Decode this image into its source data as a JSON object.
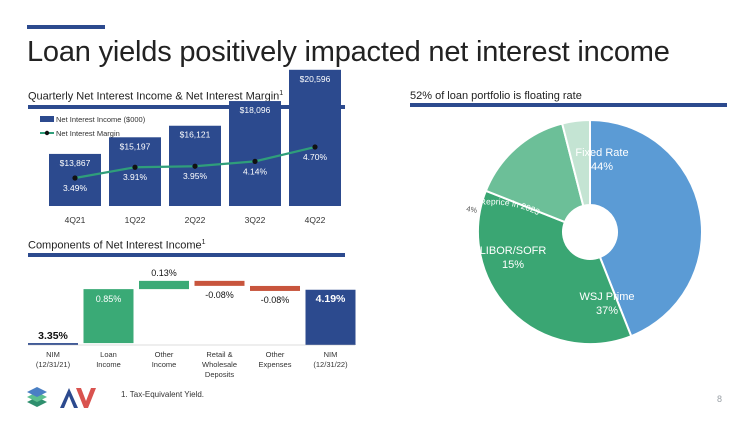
{
  "slide": {
    "title": "Loan yields positively impacted net interest income",
    "page_number": "8",
    "footnote": "1.  Tax-Equivalent Yield."
  },
  "colors": {
    "navy": "#2c4a8e",
    "line_teal": "#2f9e7a",
    "wf_green": "#3aaa76",
    "wf_red": "#c8553d",
    "pie_blue": "#5b9bd5",
    "pie_light_green": "#c4e4d3",
    "pie_mint": "#6cbf98",
    "pie_green": "#3aa673"
  },
  "sections": {
    "nii_title": "Quarterly Net Interest Income & Net Interest Margin",
    "nii_sup": "1",
    "components_title": "Components of Net Interest Income",
    "components_sup": "1",
    "portfolio_title": "52% of loan portfolio is floating rate"
  },
  "chart_data": [
    {
      "type": "bar",
      "categories": [
        "4Q21",
        "1Q22",
        "2Q22",
        "3Q22",
        "4Q22"
      ],
      "series": [
        {
          "name": "Net Interest Income ($000)",
          "kind": "bar",
          "values": [
            13867,
            15197,
            16121,
            18096,
            20596
          ],
          "labels": [
            "$13,867",
            "$15,197",
            "$16,121",
            "$18,096",
            "$20,596"
          ]
        },
        {
          "name": "Net Interest Margin",
          "kind": "line",
          "values": [
            3.49,
            3.91,
            3.95,
            4.14,
            4.7
          ],
          "labels": [
            "3.49%",
            "3.91%",
            "3.95%",
            "4.14%",
            "4.70%"
          ]
        }
      ],
      "legend": "top-left"
    },
    {
      "type": "bar",
      "subtype": "waterfall",
      "categories": [
        "NIM\n(12/31/21)",
        "Loan\nIncome",
        "Other\nIncome",
        "Retail &\nWholesale\nDeposits",
        "Other\nExpenses",
        "NIM\n(12/31/22)"
      ],
      "values": [
        3.35,
        0.85,
        0.13,
        -0.08,
        -0.08,
        4.19
      ],
      "kinds": [
        "total",
        "delta",
        "delta",
        "delta",
        "delta",
        "total"
      ],
      "labels": [
        "3.35%",
        "0.85%",
        "0.13%",
        "-0.08%",
        "-0.08%",
        "4.19%"
      ]
    },
    {
      "type": "pie",
      "donut": true,
      "slices": [
        {
          "label": "Fixed Rate",
          "value": 44,
          "value_label": "44%"
        },
        {
          "label": "WSJ Prime",
          "value": 37,
          "value_label": "37%"
        },
        {
          "label": "LIBOR/SOFR",
          "value": 15,
          "value_label": "15%"
        },
        {
          "label": "Reprice in 2023",
          "value": 4,
          "value_label": "4%"
        }
      ]
    }
  ]
}
